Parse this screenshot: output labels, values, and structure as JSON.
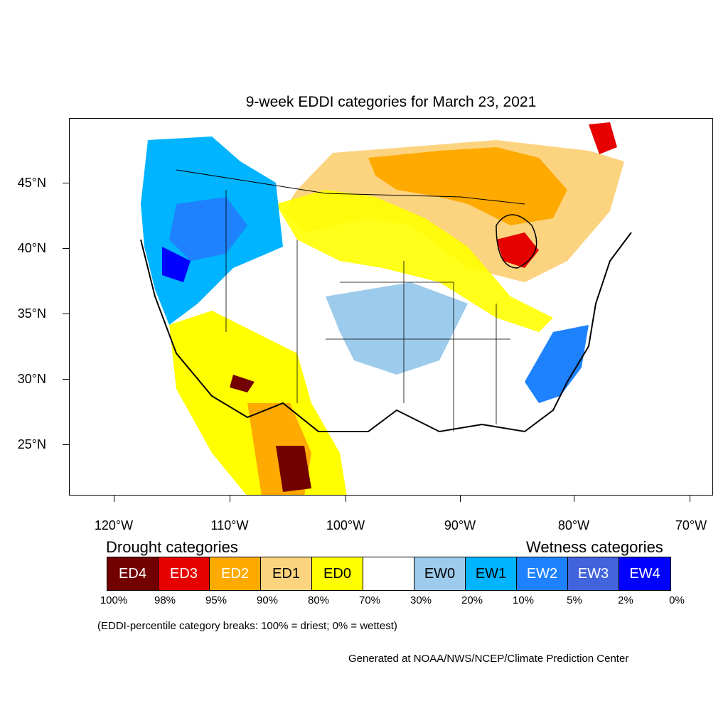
{
  "title": "9-week EDDI categories for March 23, 2021",
  "lat_labels": [
    "45°N",
    "40°N",
    "35°N",
    "30°N",
    "25°N"
  ],
  "lon_labels": [
    "120°W",
    "110°W",
    "100°W",
    "90°W",
    "80°W",
    "70°W"
  ],
  "legend": {
    "drought_heading": "Drought categories",
    "wetness_heading": "Wetness categories",
    "categories": [
      {
        "label": "ED4",
        "color": "#730000",
        "text_color": "#ffffff"
      },
      {
        "label": "ED3",
        "color": "#e60000",
        "text_color": "#ffffff"
      },
      {
        "label": "ED2",
        "color": "#ffaa00",
        "text_color": "#ffffff"
      },
      {
        "label": "ED1",
        "color": "#fcd37f",
        "text_color": "#000000"
      },
      {
        "label": "ED0",
        "color": "#ffff00",
        "text_color": "#000000"
      },
      {
        "label": "",
        "color": "#ffffff",
        "text_color": "#000000"
      },
      {
        "label": "EW0",
        "color": "#9dcbeb",
        "text_color": "#000000"
      },
      {
        "label": "EW1",
        "color": "#00b4ff",
        "text_color": "#000000"
      },
      {
        "label": "EW2",
        "color": "#1e82ff",
        "text_color": "#ffffff"
      },
      {
        "label": "EW3",
        "color": "#4164dc",
        "text_color": "#ffffff"
      },
      {
        "label": "EW4",
        "color": "#0000ff",
        "text_color": "#ffffff"
      }
    ],
    "percentiles": [
      "100%",
      "98%",
      "95%",
      "90%",
      "80%",
      "70%",
      "30%",
      "20%",
      "10%",
      "5%",
      "2%",
      "0%"
    ]
  },
  "note": "(EDDI-percentile category breaks: 100% = driest; 0% = wettest)",
  "credit": "Generated at NOAA/NWS/NCEP/Climate Prediction Center"
}
